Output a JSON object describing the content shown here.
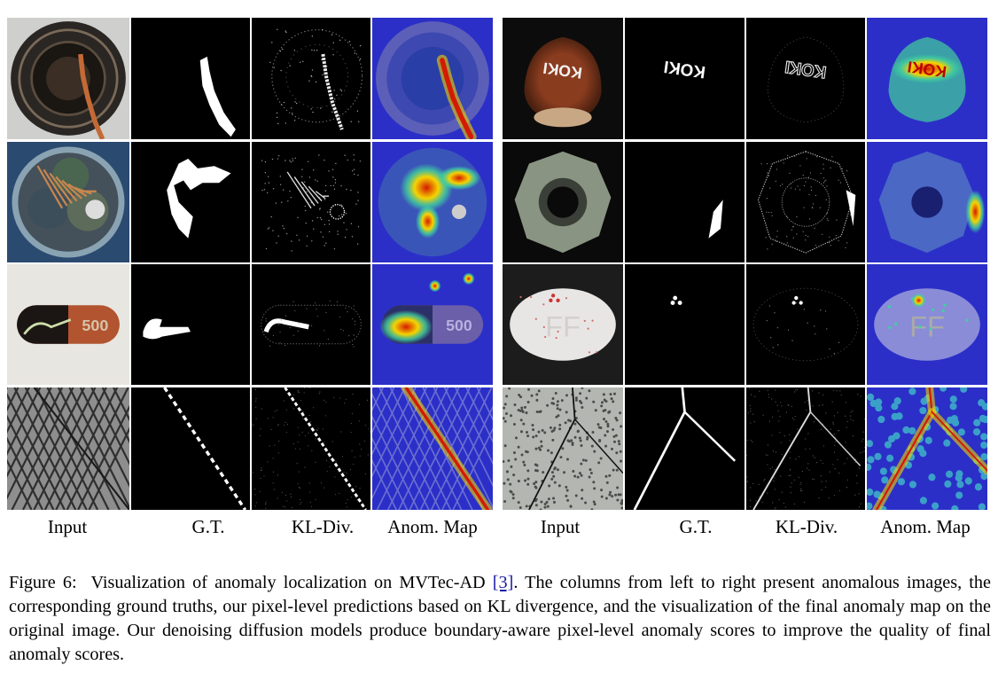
{
  "figure": {
    "panels": [
      {
        "column_labels": [
          "Input",
          "G.T.",
          "KL-Div.",
          "Anom. Map"
        ]
      },
      {
        "column_labels": [
          "Input",
          "G.T.",
          "KL-Div.",
          "Anom. Map"
        ]
      }
    ],
    "rows": [
      {
        "left": "screw-cap",
        "right": "hazelnut"
      },
      {
        "left": "cable",
        "right": "metal-nut"
      },
      {
        "left": "capsule",
        "right": "pill"
      },
      {
        "left": "grid",
        "right": "tile"
      }
    ],
    "embedded_text": {
      "hazelnut_print": "KOKI",
      "capsule_print": "500",
      "pill_print": "FF"
    }
  },
  "caption": {
    "figure_label": "Figure 6:",
    "text_before_ref": "Visualization of anomaly localization on MVTec-AD ",
    "ref": "[3]",
    "text_after_ref": ". The columns from left to right present anomalous images, the corresponding ground truths, our pixel-level predictions based on KL divergence, and the visualization of the final anomaly map on the original image. Our denoising diffusion models produce boundary-aware pixel-level anomaly scores to improve the quality of final anomaly scores."
  },
  "colors": {
    "heat_background": "#2b2fc8",
    "heat_hot": "#d41a00",
    "heat_warm": "#f5d400",
    "link": "#1a1aa6"
  }
}
